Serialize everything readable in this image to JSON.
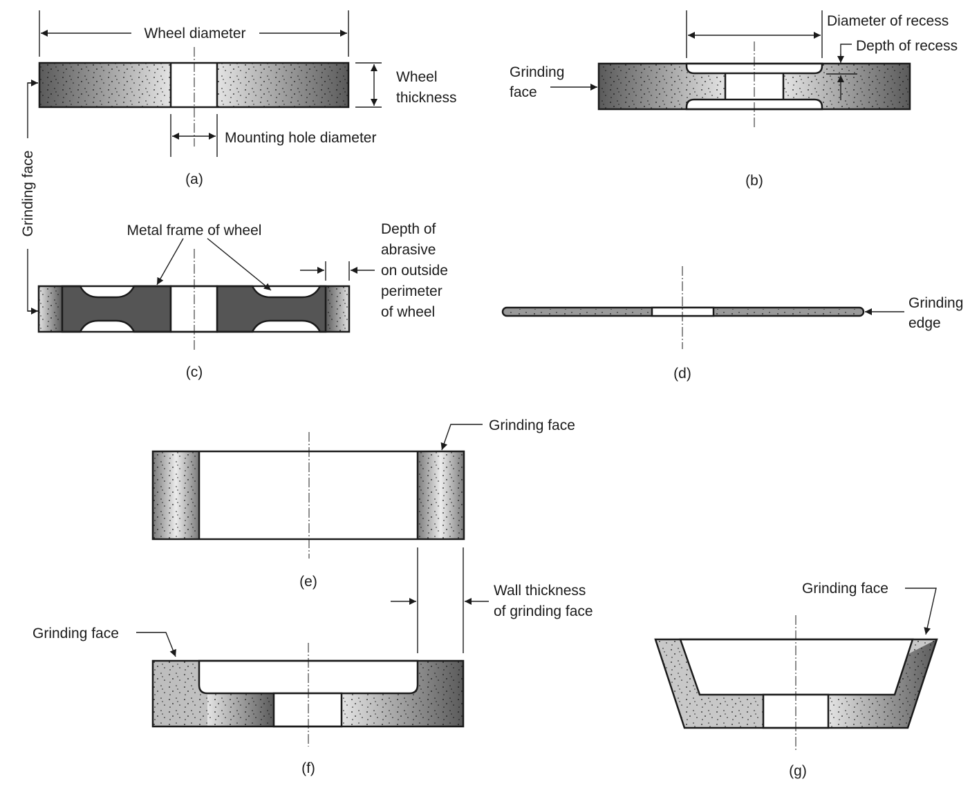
{
  "colors": {
    "ink": "#1a1a1a",
    "abrasive_dark": "#555555",
    "abrasive_light": "#d8d8d8",
    "metal": "#555555"
  },
  "a": {
    "wheel_diameter": "Wheel diameter",
    "wheel_thickness_1": "Wheel",
    "wheel_thickness_2": "thickness",
    "mounting_hole": "Mounting hole diameter",
    "caption": "(a)"
  },
  "grinding_face_vertical": "Grinding face",
  "b": {
    "diameter_of_recess": "Diameter of recess",
    "depth_of_recess": "Depth of recess",
    "grinding_face_1": "Grinding",
    "grinding_face_2": "face",
    "caption": "(b)"
  },
  "c": {
    "metal_frame": "Metal frame of wheel",
    "depth_1": "Depth of",
    "depth_2": "abrasive",
    "depth_3": "on outside",
    "depth_4": "perimeter",
    "depth_5": "of wheel",
    "caption": "(c)"
  },
  "d": {
    "grinding_edge_1": "Grinding",
    "grinding_edge_2": "edge",
    "caption": "(d)"
  },
  "e": {
    "grinding_face": "Grinding face",
    "caption": "(e)"
  },
  "f": {
    "grinding_face": "Grinding face",
    "wall_1": "Wall thickness",
    "wall_2": "of grinding face",
    "caption": "(f)"
  },
  "g": {
    "grinding_face": "Grinding face",
    "caption": "(g)"
  }
}
